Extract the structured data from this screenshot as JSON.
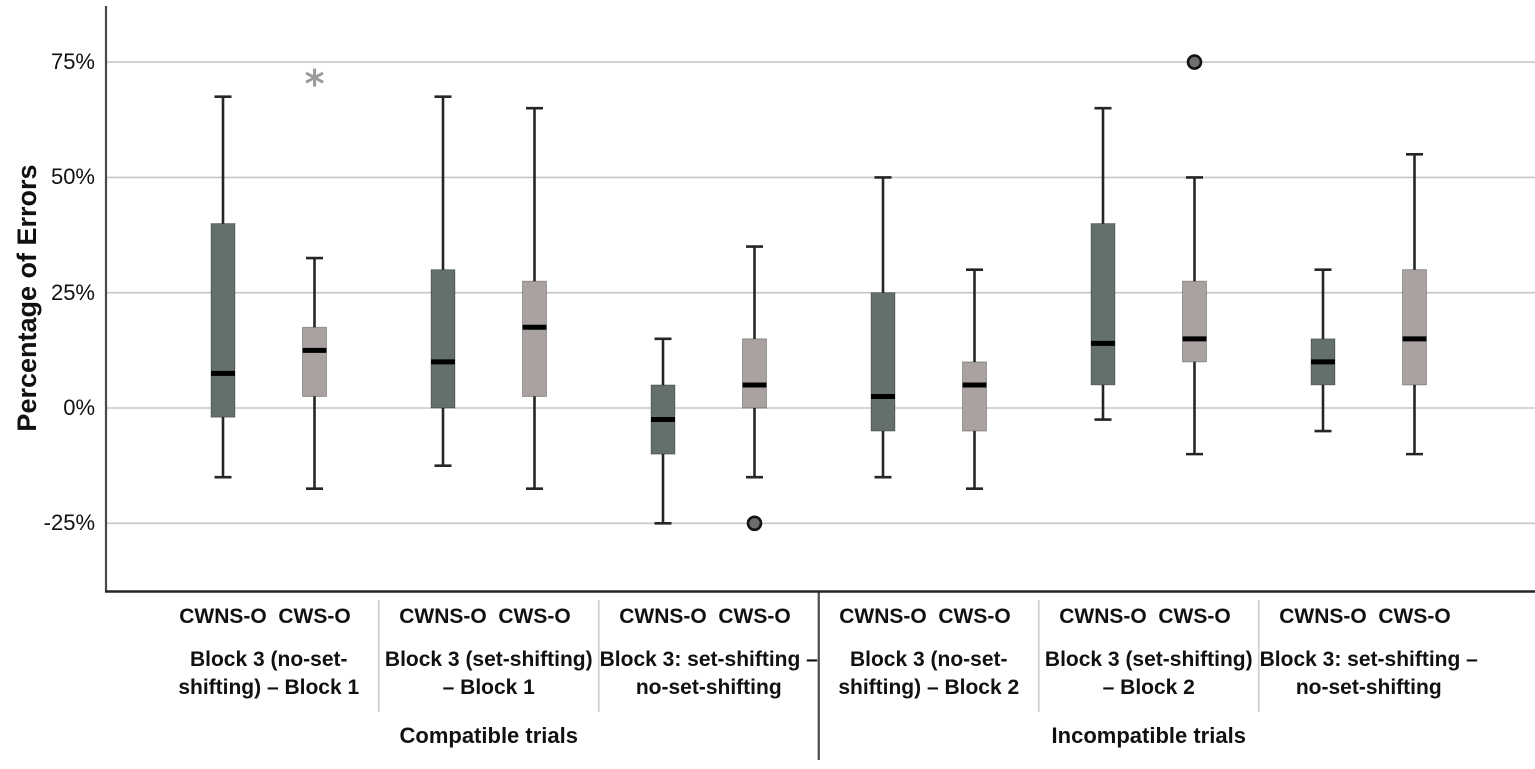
{
  "figure": {
    "background": "#ffffff"
  },
  "chart_data": {
    "type": "boxplot",
    "title": "",
    "xlabel": "",
    "ylabel": "Percentage of Errors",
    "y_axis": {
      "tick_labels": [
        "75%",
        "50%",
        "25%",
        "0%",
        "-25%"
      ],
      "tick_values": [
        75,
        50,
        25,
        0,
        -25
      ],
      "unit": "percent",
      "grid": true
    },
    "legend": "none",
    "series_names": [
      "CWNS-O",
      "CWS-O"
    ],
    "colors": {
      "cwns_box": "#64706a",
      "cws_box": "#a9a2a0",
      "box_edge": "#4a4a4a",
      "whisker": "#262626",
      "median": "#000000",
      "gridline": "#c7c7c7",
      "y_axis_line": "#4a4a4a",
      "x_axis_line": "#262626",
      "divider_light": "#cccccc",
      "divider_dark": "#4a4a4a",
      "outlier_fill": "#6e6e6e",
      "outlier_stroke": "#141414",
      "extreme_asterisk": "#9a9a9a"
    },
    "sections": [
      {
        "label": "Compatible trials",
        "groups": [
          {
            "label_lines": [
              "Block 3 (no-set-",
              "shifting) – Block 1"
            ],
            "boxes": [
              {
                "series": "CWNS-O",
                "whisker_low": -15,
                "q1": -2,
                "median": 7.5,
                "q3": 40,
                "whisker_high": 67.5,
                "outliers": []
              },
              {
                "series": "CWS-O",
                "whisker_low": -17.5,
                "q1": 2.5,
                "median": 12.5,
                "q3": 17.5,
                "whisker_high": 32.5,
                "outliers": [
                  {
                    "value": 70,
                    "marker": "asterisk"
                  }
                ]
              }
            ]
          },
          {
            "label_lines": [
              "Block 3 (set-shifting)",
              "– Block 1"
            ],
            "boxes": [
              {
                "series": "CWNS-O",
                "whisker_low": -12.5,
                "q1": 0,
                "median": 10,
                "q3": 30,
                "whisker_high": 67.5,
                "outliers": []
              },
              {
                "series": "CWS-O",
                "whisker_low": -17.5,
                "q1": 2.5,
                "median": 17.5,
                "q3": 27.5,
                "whisker_high": 65,
                "outliers": []
              }
            ]
          },
          {
            "label_lines": [
              "Block 3: set-shifting –",
              "no-set-shifting"
            ],
            "boxes": [
              {
                "series": "CWNS-O",
                "whisker_low": -25,
                "q1": -10,
                "median": -2.5,
                "q3": 5,
                "whisker_high": 15,
                "outliers": []
              },
              {
                "series": "CWS-O",
                "whisker_low": -15,
                "q1": 0,
                "median": 5,
                "q3": 15,
                "whisker_high": 35,
                "outliers": [
                  {
                    "value": -25,
                    "marker": "circle"
                  }
                ]
              }
            ]
          }
        ]
      },
      {
        "label": "Incompatible trials",
        "groups": [
          {
            "label_lines": [
              "Block 3 (no-set-",
              "shifting) – Block 2"
            ],
            "boxes": [
              {
                "series": "CWNS-O",
                "whisker_low": -15,
                "q1": -5,
                "median": 2.5,
                "q3": 25,
                "whisker_high": 50,
                "outliers": []
              },
              {
                "series": "CWS-O",
                "whisker_low": -17.5,
                "q1": -5,
                "median": 5,
                "q3": 10,
                "whisker_high": 30,
                "outliers": []
              }
            ]
          },
          {
            "label_lines": [
              "Block 3 (set-shifting)",
              "– Block 2"
            ],
            "boxes": [
              {
                "series": "CWNS-O",
                "whisker_low": -2.5,
                "q1": 5,
                "median": 14,
                "q3": 40,
                "whisker_high": 65,
                "outliers": []
              },
              {
                "series": "CWS-O",
                "whisker_low": -10,
                "q1": 10,
                "median": 15,
                "q3": 27.5,
                "whisker_high": 50,
                "outliers": [
                  {
                    "value": 75,
                    "marker": "circle"
                  }
                ]
              }
            ]
          },
          {
            "label_lines": [
              "Block 3: set-shifting –",
              "no-set-shifting"
            ],
            "boxes": [
              {
                "series": "CWNS-O",
                "whisker_low": -5,
                "q1": 5,
                "median": 10,
                "q3": 15,
                "whisker_high": 30,
                "outliers": []
              },
              {
                "series": "CWS-O",
                "whisker_low": -10,
                "q1": 5,
                "median": 15,
                "q3": 30,
                "whisker_high": 55,
                "outliers": []
              }
            ]
          }
        ]
      }
    ]
  }
}
